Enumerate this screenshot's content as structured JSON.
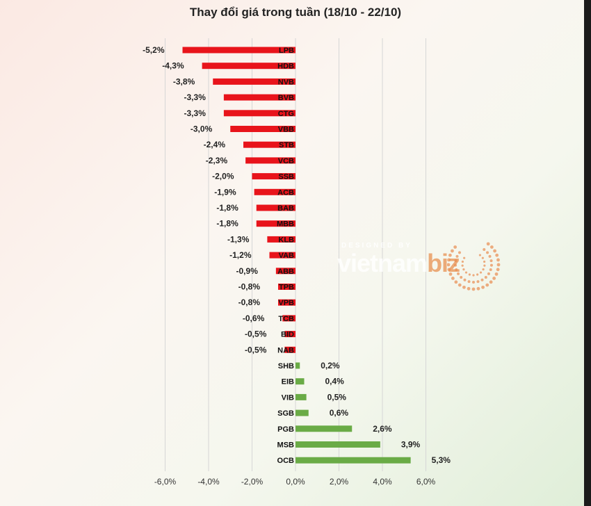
{
  "chart_data": {
    "type": "bar",
    "orientation": "horizontal",
    "title": "Thay đổi giá trong tuần (18/10 - 22/10)",
    "categories": [
      "LPB",
      "HDB",
      "NVB",
      "BVB",
      "CTG",
      "VBB",
      "STB",
      "VCB",
      "SSB",
      "ACB",
      "BAB",
      "MBB",
      "KLB",
      "VAB",
      "ABB",
      "TPB",
      "VPB",
      "TCB",
      "BID",
      "NAB",
      "SHB",
      "EIB",
      "VIB",
      "SGB",
      "PGB",
      "MSB",
      "OCB"
    ],
    "values": [
      -5.2,
      -4.3,
      -3.8,
      -3.3,
      -3.3,
      -3.0,
      -2.4,
      -2.3,
      -2.0,
      -1.9,
      -1.8,
      -1.8,
      -1.3,
      -1.2,
      -0.9,
      -0.8,
      -0.8,
      -0.6,
      -0.5,
      -0.5,
      0.2,
      0.4,
      0.5,
      0.6,
      2.6,
      3.9,
      5.3
    ],
    "value_labels": [
      "-5,2%",
      "-4,3%",
      "-3,8%",
      "-3,3%",
      "-3,3%",
      "-3,0%",
      "-2,4%",
      "-2,3%",
      "-2,0%",
      "-1,9%",
      "-1,8%",
      "-1,8%",
      "-1,3%",
      "-1,2%",
      "-0,9%",
      "-0,8%",
      "-0,8%",
      "-0,6%",
      "-0,5%",
      "-0,5%",
      "0,2%",
      "0,4%",
      "0,5%",
      "0,6%",
      "2,6%",
      "3,9%",
      "5,3%"
    ],
    "xlim": [
      -6,
      6
    ],
    "x_ticks": [
      -6,
      -4,
      -2,
      0,
      2,
      4,
      6
    ],
    "x_tick_labels": [
      "-6,0%",
      "-4,0%",
      "-2,0%",
      "0,0%",
      "2,0%",
      "4,0%",
      "6,0%"
    ],
    "grid": "vertical",
    "colors": {
      "negative": "#e8141b",
      "positive": "#6aab46",
      "grid": "#d6d6d6"
    }
  },
  "watermark": {
    "designed_by": "DESIGNED BY",
    "brand_main": "vietnam",
    "brand_accent": "biz"
  }
}
